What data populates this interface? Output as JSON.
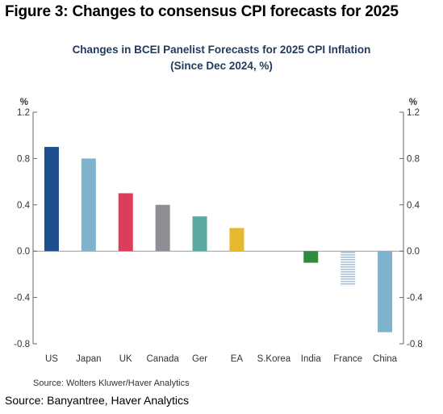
{
  "figure_title": "Figure 3: Changes to consensus CPI forecasts for 2025",
  "source": "Source: Banyantree, Haver Analytics",
  "chart_data": {
    "type": "bar",
    "title": "Changes in BCEI Panelist Forecasts for 2025 CPI Inflation",
    "subtitle": "(Since Dec 2024, %)",
    "ylabel_left": "%",
    "ylabel_right": "%",
    "ylim": [
      -0.8,
      1.2
    ],
    "yticks": [
      "1.2",
      "0.8",
      "0.4",
      "0.0",
      "-0.4",
      "-0.8"
    ],
    "categories": [
      "US",
      "Japan",
      "UK",
      "Canada",
      "Ger",
      "EA",
      "S.Korea",
      "India",
      "France",
      "China"
    ],
    "values": [
      0.9,
      0.8,
      0.5,
      0.4,
      0.3,
      0.2,
      0.0,
      -0.1,
      -0.3,
      -0.7
    ],
    "colors": [
      "#1f4e8c",
      "#7fb2cc",
      "#dc3c5e",
      "#8e8e94",
      "#5aa9a3",
      "#e8b830",
      "#cccccc",
      "#2e8b3e",
      "#a9c3dc",
      "#7fb2cc"
    ],
    "patterns": [
      null,
      null,
      null,
      null,
      null,
      null,
      null,
      null,
      "striped",
      null
    ],
    "grid": false,
    "note": "Source:  Wolters Kluwer/Haver Analytics"
  }
}
